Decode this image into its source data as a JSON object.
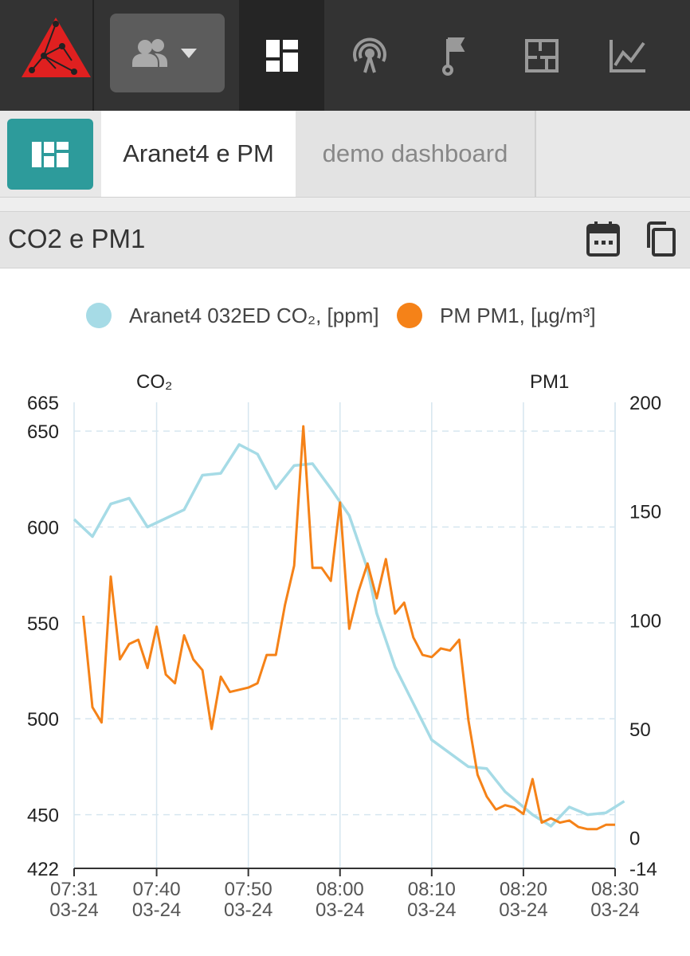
{
  "topbar": {
    "logo": "trianglemesh-logo",
    "group_button": {
      "icon": "group-icon",
      "caret": "caret-down-icon"
    },
    "nav_icons": [
      "dashboard-icon",
      "antenna-icon",
      "flag-icon",
      "floorplan-icon",
      "chart-icon"
    ]
  },
  "tabs": {
    "dashboard_button_icon": "dashboard-grid-icon",
    "items": [
      {
        "label": "Aranet4 e PM"
      },
      {
        "label": "demo dashboard"
      }
    ]
  },
  "card": {
    "title": "CO2 e PM1"
  },
  "colors": {
    "co2": "#a6dbe6",
    "pm": "#f58218",
    "teal": "#2d9b9b",
    "dark": "#333333"
  },
  "chart_data": {
    "type": "line",
    "y_axis_left_title": "CO₂",
    "y_axis_right_title": "PM1",
    "legend": [
      {
        "name": "Aranet4 032ED CO₂, [ppm]",
        "color": "#a6dbe6"
      },
      {
        "name": "PM PM1, [µg/m³]",
        "color": "#f58218"
      }
    ],
    "x_range": [
      0,
      59
    ],
    "x_ticks": [
      {
        "t": 0,
        "time": "07:31",
        "date": "03-24"
      },
      {
        "t": 9,
        "time": "07:40",
        "date": "03-24"
      },
      {
        "t": 19,
        "time": "07:50",
        "date": "03-24"
      },
      {
        "t": 29,
        "time": "08:00",
        "date": "03-24"
      },
      {
        "t": 39,
        "time": "08:10",
        "date": "03-24"
      },
      {
        "t": 49,
        "time": "08:20",
        "date": "03-24"
      },
      {
        "t": 59,
        "time": "08:30",
        "date": "03-24"
      }
    ],
    "y_left_range": [
      422,
      665
    ],
    "y_left_ticks": [
      422,
      450,
      500,
      550,
      600,
      650,
      665
    ],
    "y_right_range": [
      -14,
      200
    ],
    "y_right_ticks": [
      -14,
      0,
      50,
      100,
      150,
      200
    ],
    "series": [
      {
        "name": "Aranet4 032ED CO₂, [ppm]",
        "axis": "left",
        "color": "#a6dbe6",
        "points": [
          [
            0,
            604
          ],
          [
            2,
            595
          ],
          [
            4,
            612
          ],
          [
            6,
            615
          ],
          [
            8,
            600
          ],
          [
            12,
            609
          ],
          [
            14,
            627
          ],
          [
            16,
            628
          ],
          [
            18,
            643
          ],
          [
            20,
            638
          ],
          [
            22,
            620
          ],
          [
            24,
            632
          ],
          [
            26,
            633
          ],
          [
            28,
            620
          ],
          [
            30,
            606
          ],
          [
            32,
            578
          ],
          [
            33,
            555
          ],
          [
            35,
            527
          ],
          [
            37,
            508
          ],
          [
            39,
            489
          ],
          [
            43,
            475
          ],
          [
            45,
            474
          ],
          [
            47,
            462
          ],
          [
            50,
            450
          ],
          [
            52,
            444
          ],
          [
            54,
            454
          ],
          [
            56,
            450
          ],
          [
            58,
            451
          ],
          [
            60,
            457
          ]
        ]
      },
      {
        "name": "PM PM1, [µg/m³]",
        "axis": "right",
        "color": "#f58218",
        "points": [
          [
            1,
            102
          ],
          [
            2,
            60
          ],
          [
            3,
            53
          ],
          [
            4,
            120
          ],
          [
            5,
            82
          ],
          [
            6,
            89
          ],
          [
            7,
            91
          ],
          [
            8,
            78
          ],
          [
            9,
            97
          ],
          [
            10,
            75
          ],
          [
            11,
            71
          ],
          [
            12,
            93
          ],
          [
            13,
            82
          ],
          [
            14,
            77
          ],
          [
            15,
            50
          ],
          [
            16,
            74
          ],
          [
            17,
            67
          ],
          [
            18,
            68
          ],
          [
            19,
            69
          ],
          [
            20,
            71
          ],
          [
            21,
            84
          ],
          [
            22,
            84
          ],
          [
            23,
            107
          ],
          [
            24,
            125
          ],
          [
            25,
            189
          ],
          [
            26,
            124
          ],
          [
            27,
            124
          ],
          [
            28,
            118
          ],
          [
            29,
            154
          ],
          [
            30,
            96
          ],
          [
            31,
            113
          ],
          [
            32,
            126
          ],
          [
            33,
            110
          ],
          [
            34,
            128
          ],
          [
            35,
            103
          ],
          [
            36,
            108
          ],
          [
            37,
            92
          ],
          [
            38,
            84
          ],
          [
            39,
            83
          ],
          [
            40,
            87
          ],
          [
            41,
            86
          ],
          [
            42,
            91
          ],
          [
            43,
            54
          ],
          [
            44,
            29
          ],
          [
            45,
            19
          ],
          [
            46,
            13
          ],
          [
            47,
            15
          ],
          [
            48,
            14
          ],
          [
            49,
            11
          ],
          [
            50,
            27
          ],
          [
            51,
            7
          ],
          [
            52,
            9
          ],
          [
            53,
            7
          ],
          [
            54,
            8
          ],
          [
            55,
            5
          ],
          [
            56,
            4
          ],
          [
            57,
            4
          ],
          [
            58,
            6
          ],
          [
            59,
            6
          ]
        ]
      }
    ]
  }
}
